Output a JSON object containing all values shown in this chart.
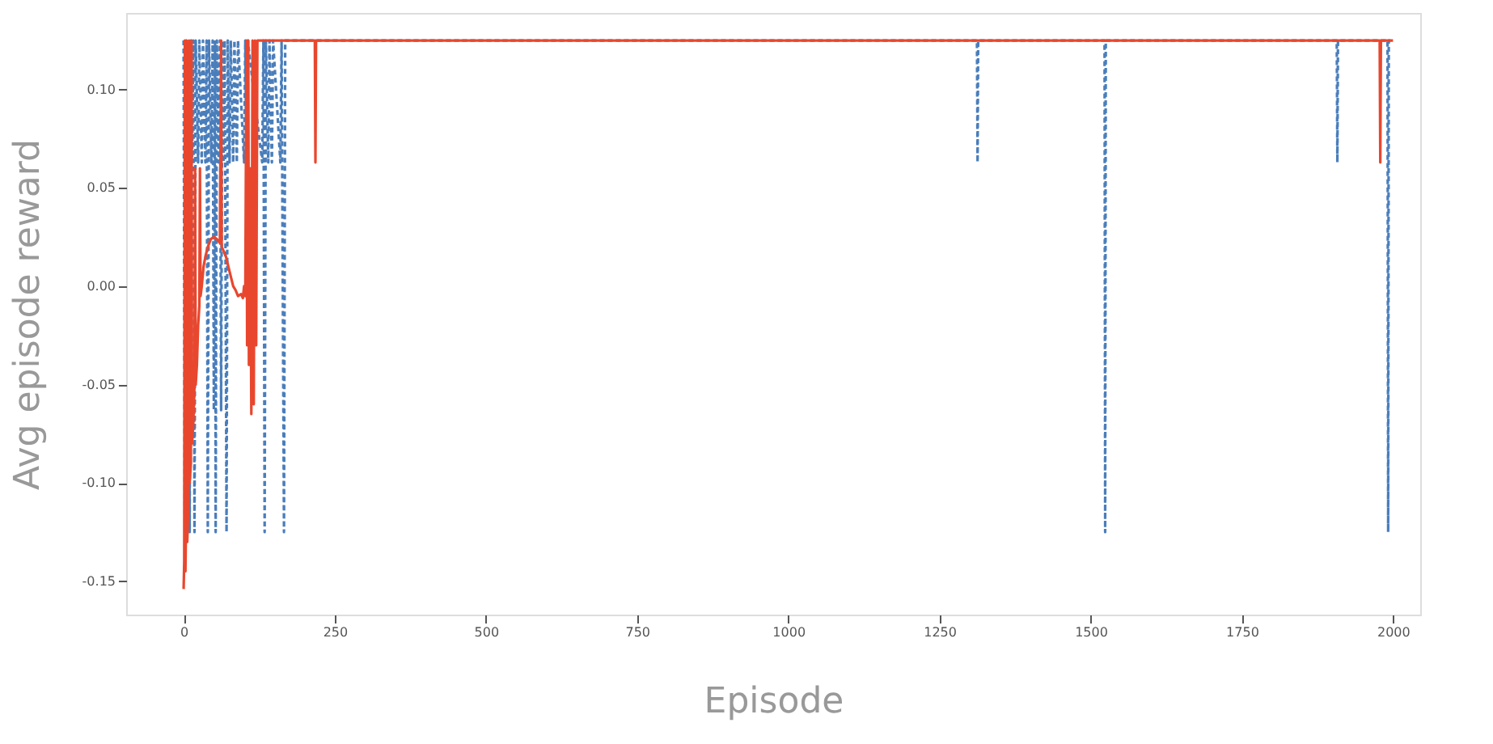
{
  "chart_data": {
    "type": "line",
    "xlabel": "Episode",
    "ylabel": "Avg episode reward",
    "xlim": [
      -95,
      2045
    ],
    "ylim": [
      -0.167,
      0.139
    ],
    "xticks": [
      0,
      250,
      500,
      750,
      1000,
      1250,
      1500,
      1750,
      2000
    ],
    "yticks": [
      {
        "value": -0.15,
        "label": "-0.15"
      },
      {
        "value": -0.1,
        "label": "-0.10"
      },
      {
        "value": -0.05,
        "label": "-0.05"
      },
      {
        "value": 0,
        "label": "0.00"
      },
      {
        "value": 0.05,
        "label": "0.05"
      },
      {
        "value": 0.1,
        "label": "0.10"
      }
    ],
    "series": [
      {
        "color": "#4a7ebb",
        "line_style": "dashed",
        "x": [
          0,
          2,
          4,
          6,
          8,
          10,
          12,
          14,
          16,
          18,
          20,
          24,
          26,
          30,
          32,
          36,
          38,
          40,
          42,
          46,
          48,
          50,
          52,
          53,
          55,
          58,
          60,
          62,
          64,
          66,
          68,
          71,
          73,
          76,
          78,
          82,
          84,
          88,
          90,
          100,
          102,
          104,
          106,
          130,
          132,
          134,
          136,
          140,
          142,
          146,
          148,
          160,
          162,
          166,
          168,
          1312,
          1313,
          1314,
          1523,
          1524,
          1525,
          1907,
          1908,
          1909,
          1991,
          1992,
          1993,
          2000
        ],
        "values": [
          0.125,
          -0.125,
          0.125,
          0.063,
          0.125,
          -0.125,
          0.125,
          0.063,
          0.125,
          -0.125,
          0.125,
          0.063,
          0.125,
          0.063,
          0.125,
          0.063,
          0.125,
          -0.125,
          0.125,
          0.063,
          0.125,
          -0.063,
          0.125,
          -0.125,
          0.125,
          0.063,
          0.125,
          -0.063,
          0.125,
          0.063,
          0.125,
          -0.125,
          0.125,
          0.063,
          0.125,
          0.063,
          0.125,
          0.063,
          0.125,
          0.063,
          0.125,
          0.063,
          0.125,
          0.063,
          0.125,
          -0.125,
          0.125,
          0.063,
          0.125,
          0.063,
          0.125,
          0.063,
          0.125,
          -0.125,
          0.125,
          0.125,
          0.063,
          0.125,
          0.125,
          -0.125,
          0.125,
          0.125,
          0.063,
          0.125,
          0.125,
          -0.125,
          0.125,
          0.125
        ]
      },
      {
        "color": "#e8472e",
        "line_style": "solid",
        "x": [
          0,
          1,
          2,
          3,
          4,
          5,
          6,
          8,
          9,
          10,
          12,
          13,
          14,
          16,
          18,
          19,
          20,
          22,
          24,
          26,
          27,
          28,
          30,
          33,
          36,
          40,
          45,
          50,
          55,
          60,
          62,
          63,
          66,
          70,
          74,
          78,
          82,
          86,
          90,
          95,
          98,
          100,
          102,
          104,
          105,
          107,
          108,
          110,
          112,
          114,
          116,
          118,
          120,
          122,
          217,
          218,
          219,
          1978,
          1979,
          1980,
          2000
        ],
        "values": [
          -0.154,
          -0.14,
          0.125,
          -0.145,
          -0.12,
          0.125,
          -0.13,
          -0.11,
          0.125,
          -0.1,
          -0.09,
          0.125,
          -0.08,
          -0.07,
          -0.05,
          0.06,
          -0.05,
          -0.04,
          -0.02,
          -0.01,
          0.06,
          -0.005,
          0.0,
          0.01,
          0.015,
          0.02,
          0.024,
          0.025,
          0.024,
          0.022,
          0.125,
          0.02,
          0.018,
          0.015,
          0.01,
          0.005,
          0.0,
          -0.002,
          -0.005,
          -0.004,
          -0.006,
          0.0,
          -0.005,
          0.125,
          -0.03,
          0.125,
          -0.04,
          0.06,
          -0.065,
          0.125,
          -0.06,
          0.125,
          -0.03,
          0.125,
          0.125,
          0.063,
          0.125,
          0.125,
          0.063,
          0.125,
          0.125
        ]
      }
    ]
  }
}
